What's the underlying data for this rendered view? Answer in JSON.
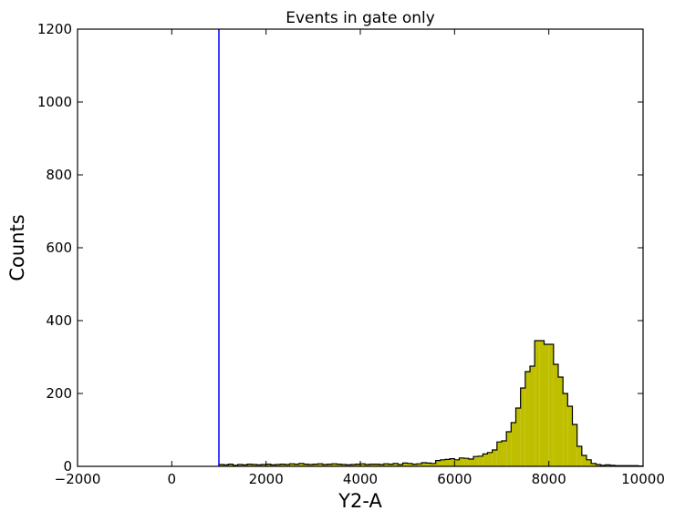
{
  "chart_data": {
    "type": "histogram",
    "title": "Events in gate only",
    "xlabel": "Y2-A",
    "ylabel": "Counts",
    "xlim": [
      -2000,
      10000
    ],
    "ylim": [
      0,
      1200
    ],
    "xticks": [
      -2000,
      0,
      2000,
      4000,
      6000,
      8000,
      10000
    ],
    "xtick_labels": [
      "−2000",
      "0",
      "2000",
      "4000",
      "6000",
      "8000",
      "10000"
    ],
    "yticks": [
      0,
      200,
      400,
      600,
      800,
      1000,
      1200
    ],
    "ytick_labels": [
      "0",
      "200",
      "400",
      "600",
      "800",
      "1000",
      "1200"
    ],
    "grid": false,
    "bin_width": 100,
    "bin_start": 1000,
    "counts": [
      5,
      4,
      6,
      3,
      5,
      4,
      6,
      5,
      4,
      5,
      6,
      4,
      5,
      6,
      5,
      7,
      6,
      8,
      6,
      5,
      6,
      7,
      5,
      6,
      7,
      6,
      5,
      4,
      5,
      6,
      7,
      5,
      6,
      6,
      5,
      7,
      6,
      8,
      5,
      9,
      8,
      6,
      7,
      10,
      9,
      8,
      16,
      18,
      19,
      21,
      18,
      23,
      22,
      20,
      27,
      28,
      34,
      38,
      45,
      67,
      70,
      95,
      120,
      160,
      215,
      260,
      275,
      345,
      345,
      335,
      335,
      280,
      245,
      200,
      165,
      115,
      55,
      30,
      18,
      8,
      5,
      3,
      4,
      3,
      2,
      2,
      2,
      2,
      2,
      1
    ],
    "fill_color": "#bfbf00",
    "edge_color": "#000000",
    "vline": {
      "x": 1000,
      "color": "#0000ff"
    }
  }
}
